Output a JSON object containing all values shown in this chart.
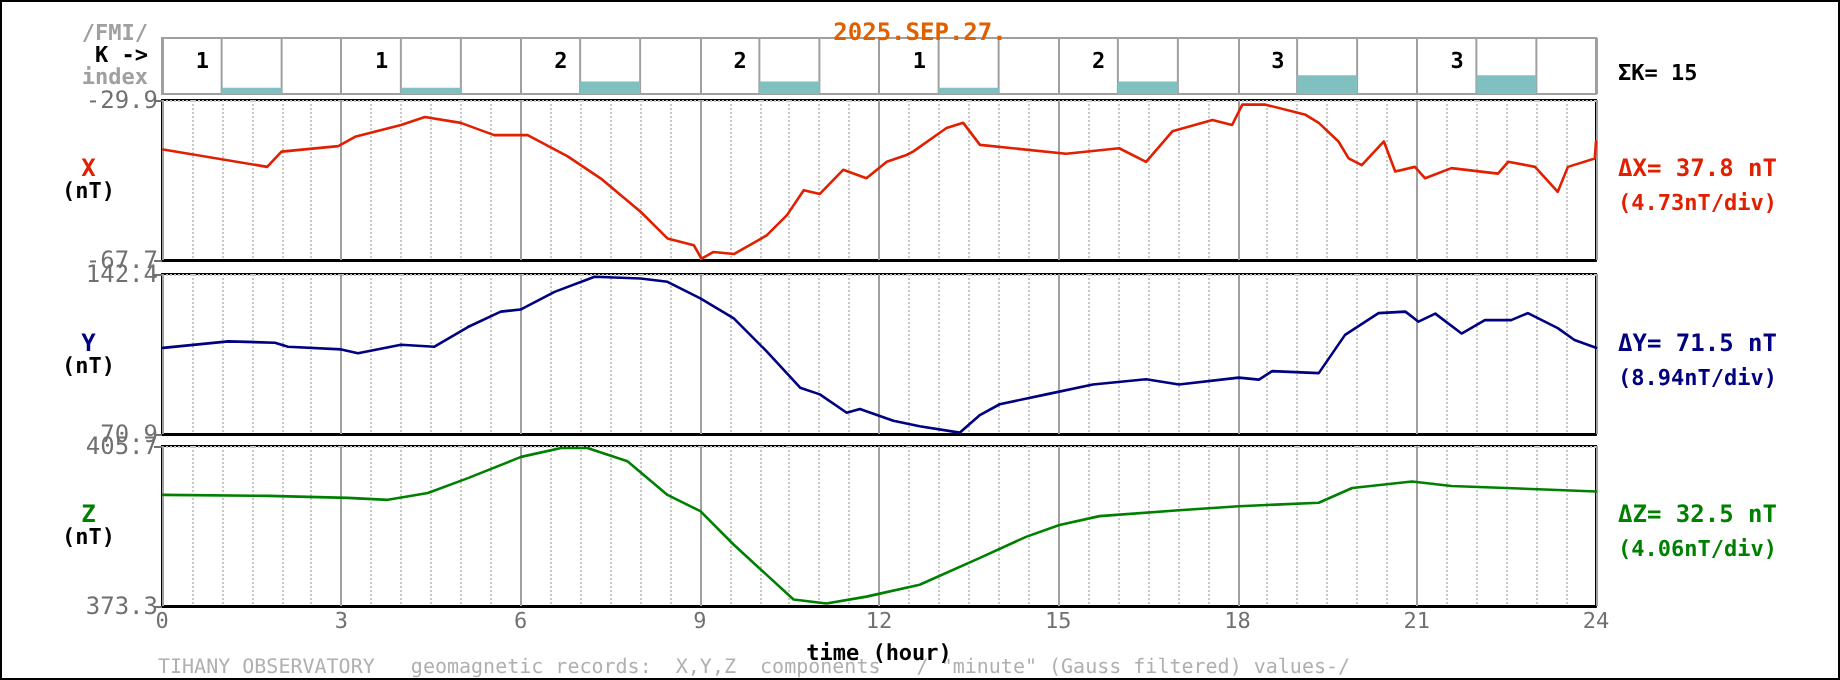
{
  "chart_data": [
    {
      "type": "bar",
      "title": "2025.SEP.27.",
      "ylabel": "K ->",
      "annotations": [
        "/FMI/",
        "index",
        "ΣK= 15"
      ],
      "categories": [
        null,
        null,
        null,
        null,
        null,
        null,
        null,
        null
      ],
      "values": [
        1,
        1,
        2,
        2,
        1,
        2,
        3,
        3
      ],
      "color": "#80c0c0",
      "data_labels": true,
      "ylim": [
        0,
        9
      ],
      "tick_labels": false,
      "grid": "x"
    },
    {
      "type": "line",
      "ylabel": "X (nT)",
      "annotations": [
        "ΔX= 37.8 nT",
        "(4.73nT/div)"
      ],
      "xlim": [
        0,
        24
      ],
      "xticks": [
        0,
        3,
        6,
        9,
        12,
        15,
        18,
        21,
        24
      ],
      "ylim": [
        -67.7,
        -29.9
      ],
      "yticks": [
        -67.7,
        -29.9
      ],
      "tick_labels": "y",
      "grid": true,
      "marker": "none",
      "series": [
        {
          "color": "#e02000",
          "x": [
            0.02,
            1.76,
            2.0,
            2.95,
            3.23,
            4.0,
            4.4,
            5.0,
            5.56,
            6.12,
            6.79,
            7.34,
            8.01,
            8.46,
            8.9,
            9.03,
            9.23,
            9.57,
            10.12,
            10.46,
            10.74,
            11.01,
            11.4,
            11.79,
            12.13,
            12.46,
            12.57,
            13.13,
            13.41,
            13.69,
            14.24,
            15.13,
            16.02,
            16.47,
            16.91,
            17.58,
            17.91,
            18.08,
            18.47,
            19.14,
            19.36,
            19.69,
            19.86,
            20.08,
            20.45,
            20.64,
            20.97,
            21.14,
            21.58,
            22.36,
            22.53,
            22.98,
            23.36,
            23.53,
            23.98,
            24.0
          ],
          "values": [
            -41.6,
            -45.7,
            -42.1,
            -40.8,
            -38.6,
            -35.8,
            -33.9,
            -35.3,
            -38.2,
            -38.2,
            -43.2,
            -48.4,
            -56.3,
            -62.6,
            -64.2,
            -67.4,
            -65.8,
            -66.3,
            -61.9,
            -57.1,
            -51.2,
            -52.1,
            -46.4,
            -48.4,
            -44.5,
            -42.9,
            -42.1,
            -36.5,
            -35.3,
            -40.5,
            -41.3,
            -42.6,
            -41.3,
            -44.5,
            -37.3,
            -34.6,
            -35.8,
            -31.0,
            -31.0,
            -33.4,
            -35.3,
            -39.7,
            -43.7,
            -45.3,
            -39.7,
            -46.8,
            -45.7,
            -48.4,
            -46.0,
            -47.3,
            -44.5,
            -45.7,
            -51.6,
            -45.7,
            -43.7,
            -39.7
          ]
        }
      ]
    },
    {
      "type": "line",
      "ylabel": "Y (nT)",
      "annotations": [
        "ΔY= 71.5 nT",
        "(8.94nT/div)"
      ],
      "xlim": [
        0,
        24
      ],
      "xticks": [
        0,
        3,
        6,
        9,
        12,
        15,
        18,
        21,
        24
      ],
      "ylim": [
        70.9,
        142.4
      ],
      "yticks": [
        70.9,
        142.4
      ],
      "tick_labels": "y",
      "grid": true,
      "marker": "none",
      "series": [
        {
          "color": "#000080",
          "x": [
            0.02,
            1.11,
            1.89,
            2.11,
            3.0,
            3.28,
            4.0,
            4.56,
            5.12,
            5.67,
            6.0,
            6.57,
            7.24,
            8.01,
            8.46,
            9.01,
            9.57,
            10.12,
            10.68,
            11.01,
            11.46,
            11.68,
            12.24,
            12.68,
            13.35,
            13.68,
            14.02,
            14.8,
            15.58,
            16.47,
            17.02,
            18.02,
            18.36,
            18.58,
            19.36,
            19.8,
            20.36,
            20.81,
            21.03,
            21.31,
            21.75,
            22.14,
            22.58,
            22.86,
            23.36,
            23.64,
            24.0
          ],
          "values": [
            109.4,
            112.3,
            111.7,
            109.9,
            108.7,
            107.0,
            110.8,
            109.9,
            118.7,
            125.6,
            126.5,
            134.4,
            141.2,
            140.4,
            138.9,
            131.5,
            122.6,
            107.8,
            91.6,
            88.6,
            80.4,
            82.1,
            76.8,
            74.4,
            71.5,
            79.2,
            84.2,
            88.6,
            93.0,
            95.4,
            93.0,
            96.1,
            95.2,
            99.0,
            98.1,
            115.2,
            124.9,
            125.6,
            121.1,
            124.7,
            115.8,
            121.8,
            121.8,
            124.9,
            118.2,
            112.9,
            109.4
          ]
        }
      ]
    },
    {
      "type": "line",
      "ylabel": "Z (nT)",
      "xlabel": "time (hour)",
      "annotations": [
        "ΔZ= 32.5 nT",
        "(4.06nT/div)",
        "TIHANY OBSERVATORY   geomagnetic records:  X,Y,Z  components   / \"minute\" (Gauss filtered) values-/"
      ],
      "xlim": [
        0,
        24
      ],
      "xticks": [
        0,
        3,
        6,
        9,
        12,
        15,
        18,
        21,
        24
      ],
      "ylim": [
        373.3,
        405.7
      ],
      "yticks": [
        373.3,
        405.7
      ],
      "grid": true,
      "marker": "none",
      "series": [
        {
          "color": "#008000",
          "x": [
            0.02,
            1.78,
            3.11,
            3.78,
            4.45,
            5.12,
            6.01,
            6.68,
            7.12,
            7.79,
            8.46,
            9.01,
            9.57,
            10.12,
            10.57,
            11.12,
            11.79,
            12.68,
            13.68,
            14.46,
            15.02,
            15.69,
            17.02,
            18.02,
            19.36,
            19.92,
            20.92,
            21.58,
            23.14,
            24.0
          ],
          "values": [
            395.8,
            395.6,
            395.2,
            394.8,
            396.2,
            399.2,
            403.5,
            405.3,
            405.3,
            402.6,
            395.8,
            392.5,
            385.7,
            379.6,
            374.6,
            373.8,
            375.2,
            377.6,
            383.0,
            387.3,
            389.7,
            391.5,
            392.7,
            393.5,
            394.2,
            397.2,
            398.5,
            397.6,
            396.9,
            396.5
          ]
        }
      ]
    }
  ]
}
